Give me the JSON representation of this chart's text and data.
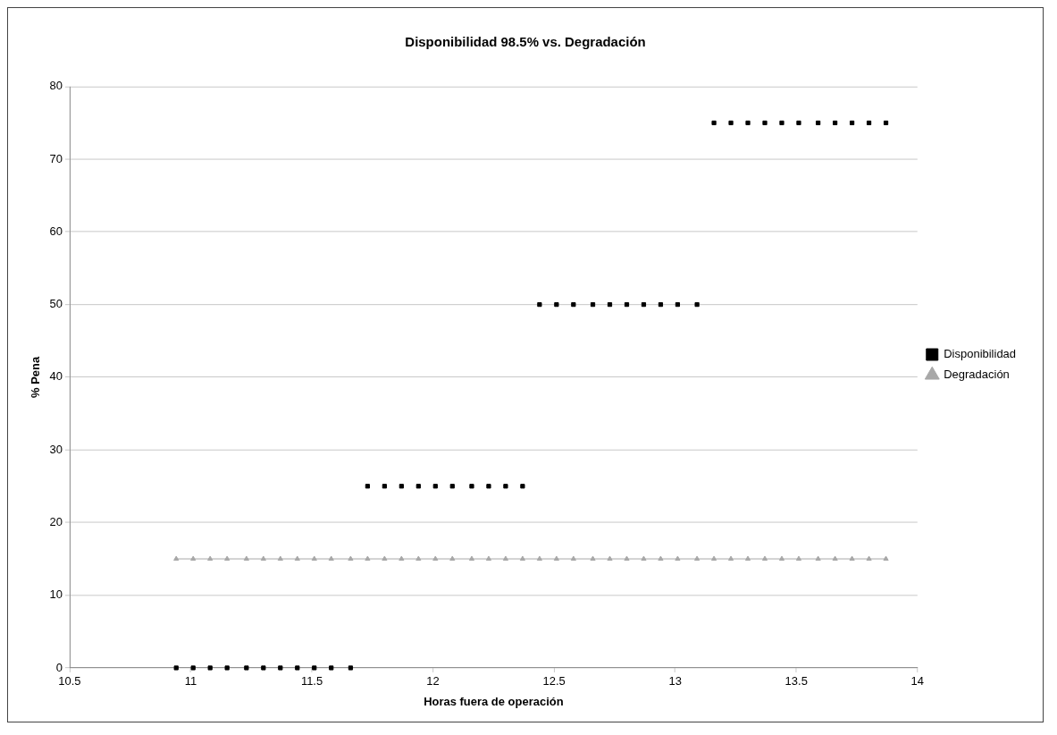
{
  "chart_data": {
    "type": "scatter",
    "title": "Disponibilidad 98.5% vs. Degradación",
    "xlabel": "Horas fuera de operación",
    "ylabel": "% Pena",
    "x": [
      10.94,
      11.01,
      11.08,
      11.15,
      11.23,
      11.3,
      11.37,
      11.44,
      11.51,
      11.58,
      11.66,
      11.73,
      11.8,
      11.87,
      11.94,
      12.01,
      12.08,
      12.16,
      12.23,
      12.3,
      12.37,
      12.44,
      12.51,
      12.58,
      12.66,
      12.73,
      12.8,
      12.87,
      12.94,
      13.01,
      13.09,
      13.16,
      13.23,
      13.3,
      13.37,
      13.44,
      13.51,
      13.59,
      13.66,
      13.73,
      13.8,
      13.87
    ],
    "series": [
      {
        "name": "Disponibilidad",
        "marker": "square",
        "color": "#000000",
        "values": [
          0,
          0,
          0,
          0,
          0,
          0,
          0,
          0,
          0,
          0,
          0,
          25,
          25,
          25,
          25,
          25,
          25,
          25,
          25,
          25,
          25,
          50,
          50,
          50,
          50,
          50,
          50,
          50,
          50,
          50,
          50,
          75,
          75,
          75,
          75,
          75,
          75,
          75,
          75,
          75,
          75,
          75
        ]
      },
      {
        "name": "Degradación",
        "type": "line",
        "marker": "triangle",
        "color": "#a8a8a8",
        "values": [
          15,
          15,
          15,
          15,
          15,
          15,
          15,
          15,
          15,
          15,
          15,
          15,
          15,
          15,
          15,
          15,
          15,
          15,
          15,
          15,
          15,
          15,
          15,
          15,
          15,
          15,
          15,
          15,
          15,
          15,
          15,
          15,
          15,
          15,
          15,
          15,
          15,
          15,
          15,
          15,
          15,
          15
        ]
      }
    ],
    "xlim": [
      10.5,
      14
    ],
    "xticks": [
      10.5,
      11,
      11.5,
      12,
      12.5,
      13,
      13.5,
      14
    ],
    "ylim": [
      0,
      80
    ],
    "yticks": [
      0,
      10,
      20,
      30,
      40,
      50,
      60,
      70,
      80
    ],
    "grid": "y",
    "legend": "right"
  }
}
